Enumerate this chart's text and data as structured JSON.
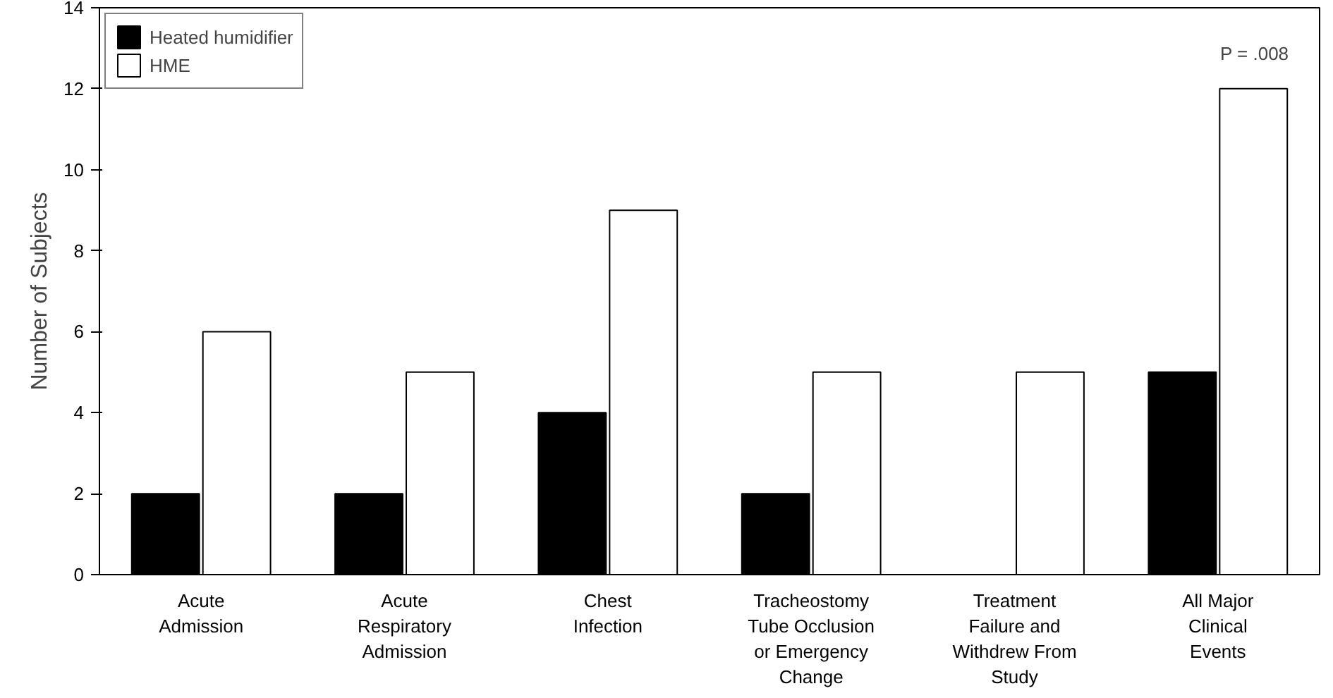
{
  "chart_data": {
    "type": "bar",
    "ylabel": "Number of Subjects",
    "categories": [
      "Acute Admission",
      "Acute Respiratory Admission",
      "Chest Infection",
      "Tracheostomy Tube Occlusion or Emergency Change",
      "Treatment Failure and Withdrew From Study",
      "All Major Clinical Events"
    ],
    "series": [
      {
        "name": "Heated humidifier",
        "color": "#000000",
        "values": [
          2,
          2,
          4,
          2,
          0,
          5
        ]
      },
      {
        "name": "HME",
        "color": "#ffffff",
        "values": [
          6,
          5,
          9,
          5,
          5,
          12
        ]
      }
    ],
    "ylim": [
      0,
      14
    ],
    "yticks": [
      0,
      2,
      4,
      6,
      8,
      10,
      12,
      14
    ],
    "grid": false,
    "legend": "top left",
    "annotations": [
      "P = .008"
    ]
  }
}
